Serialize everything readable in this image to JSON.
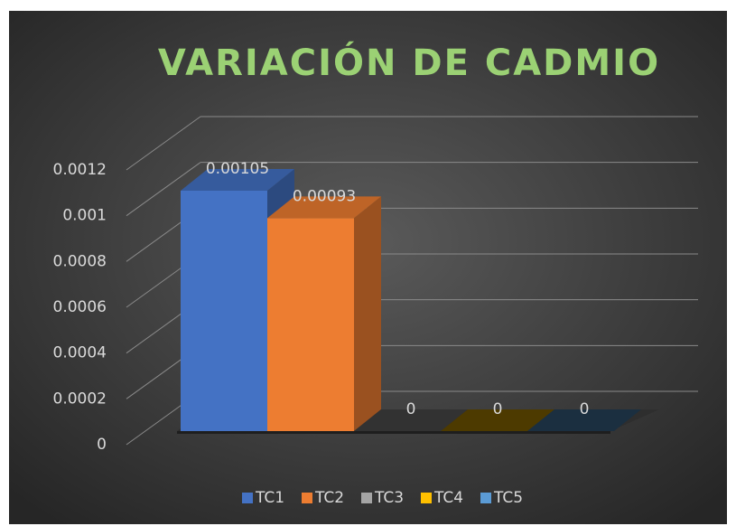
{
  "chart_data": {
    "type": "bar3d",
    "title": "VARIACIÓN DE CADMIO",
    "series": [
      {
        "name": "TC1",
        "color": "#4472c4",
        "values": [
          0.00105
        ]
      },
      {
        "name": "TC2",
        "color": "#ed7d31",
        "values": [
          0.00093
        ]
      },
      {
        "name": "TC3",
        "color": "#a5a5a5",
        "values": [
          0
        ]
      },
      {
        "name": "TC4",
        "color": "#ffc000",
        "values": [
          0
        ]
      },
      {
        "name": "TC5",
        "color": "#5b9bd5",
        "values": [
          0
        ]
      }
    ],
    "ylim": [
      0,
      0.0012
    ],
    "yticks": [
      0,
      0.0002,
      0.0004,
      0.0006,
      0.0008,
      0.001,
      0.0012
    ],
    "grid": true,
    "legend": "bottom"
  }
}
